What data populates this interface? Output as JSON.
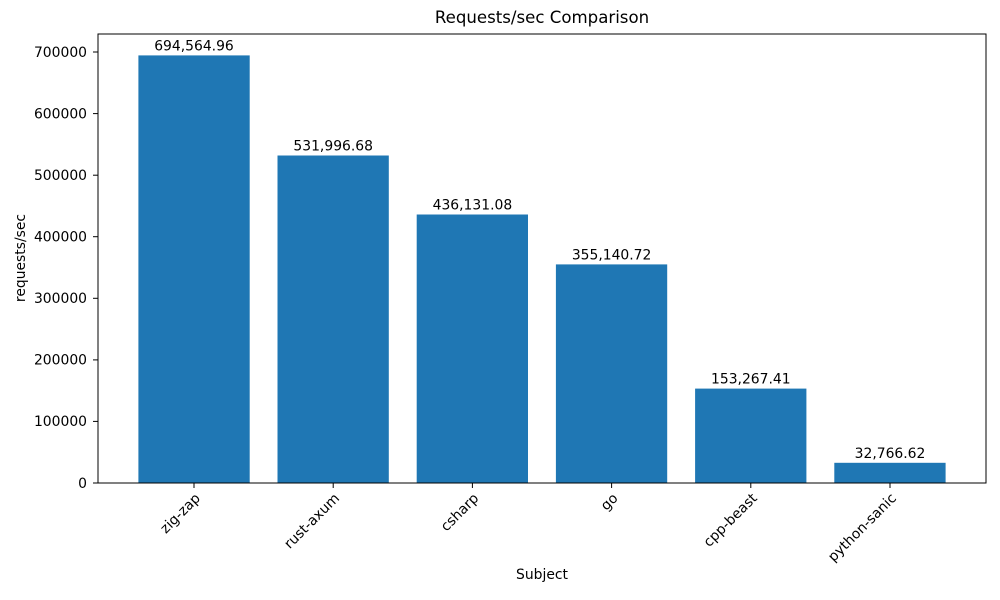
{
  "chart_data": {
    "type": "bar",
    "title": "Requests/sec Comparison",
    "xlabel": "Subject",
    "ylabel": "requests/sec",
    "categories": [
      "zig-zap",
      "rust-axum",
      "csharp",
      "go",
      "cpp-beast",
      "python-sanic"
    ],
    "values": [
      694564.96,
      531996.68,
      436131.08,
      355140.72,
      153267.41,
      32766.62
    ],
    "bar_value_labels": [
      "694,564.96",
      "531,996.68",
      "436,131.08",
      "355,140.72",
      "153,267.41",
      "32,766.62"
    ],
    "yticks": [
      0,
      100000,
      200000,
      300000,
      400000,
      500000,
      600000,
      700000
    ],
    "ytick_labels": [
      "0",
      "100000",
      "200000",
      "300000",
      "400000",
      "500000",
      "600000",
      "700000"
    ],
    "ylim": [
      0,
      729293
    ],
    "bar_width_ratio": 0.8,
    "x_margin_ratio": 0.05,
    "x_tick_rotation_deg": 45,
    "bar_color": "#1f77b4",
    "axis_color": "#000000",
    "text_color": "#000000",
    "background_color": "#ffffff",
    "grid": false,
    "legend": "none"
  }
}
